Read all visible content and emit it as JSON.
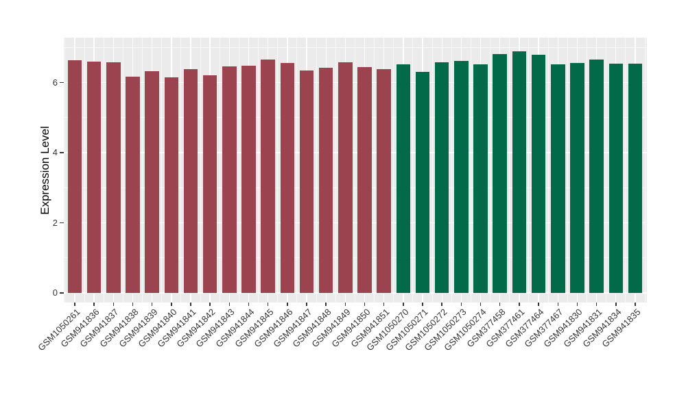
{
  "chart_data": {
    "type": "bar",
    "title": "",
    "xlabel": "",
    "ylabel": "Expression Level",
    "ylim": [
      -0.27,
      7.28
    ],
    "yticks": [
      0,
      2,
      4,
      6
    ],
    "yticks_minor": [
      1,
      3,
      5,
      7
    ],
    "grid": "on",
    "legend": "none",
    "panel_background": "#EBEBEB",
    "grid_color": "#FFFFFF",
    "axis_text_color": "#333333",
    "group_colors": {
      "left-group": "#9B4450",
      "right-group": "#036A49"
    },
    "categories": [
      "GSM1050261",
      "GSM941836",
      "GSM941837",
      "GSM941838",
      "GSM941839",
      "GSM941840",
      "GSM941841",
      "GSM941842",
      "GSM941843",
      "GSM941844",
      "GSM941845",
      "GSM941846",
      "GSM941847",
      "GSM941848",
      "GSM941849",
      "GSM941850",
      "GSM941851",
      "GSM1050270",
      "GSM1050271",
      "GSM1050272",
      "GSM1050273",
      "GSM1050274",
      "GSM377458",
      "GSM377461",
      "GSM377464",
      "GSM377467",
      "GSM941830",
      "GSM941831",
      "GSM941834",
      "GSM941835"
    ],
    "values": [
      6.63,
      6.6,
      6.57,
      6.17,
      6.33,
      6.14,
      6.38,
      6.2,
      6.45,
      6.48,
      6.66,
      6.55,
      6.35,
      6.42,
      6.58,
      6.43,
      6.38,
      6.52,
      6.3,
      6.58,
      6.62,
      6.52,
      6.81,
      6.89,
      6.79,
      6.52,
      6.55,
      6.66,
      6.53,
      6.53
    ],
    "bar_colors": [
      "#9B4450",
      "#9B4450",
      "#9B4450",
      "#9B4450",
      "#9B4450",
      "#9B4450",
      "#9B4450",
      "#9B4450",
      "#9B4450",
      "#9B4450",
      "#9B4450",
      "#9B4450",
      "#9B4450",
      "#9B4450",
      "#9B4450",
      "#9B4450",
      "#9B4450",
      "#036A49",
      "#036A49",
      "#036A49",
      "#036A49",
      "#036A49",
      "#036A49",
      "#036A49",
      "#036A49",
      "#036A49",
      "#036A49",
      "#036A49",
      "#036A49",
      "#036A49"
    ]
  }
}
